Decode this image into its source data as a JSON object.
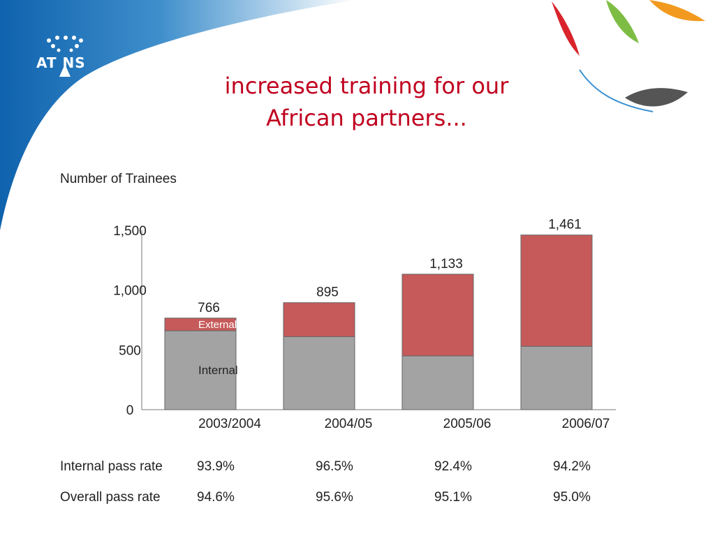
{
  "slide": {
    "title_line1": "increased training for our",
    "title_line2": "African partners...",
    "logo_text": "AT NS"
  },
  "chart_data": {
    "type": "bar",
    "stacked": true,
    "ylabel": "Number of Trainees",
    "ylim": [
      0,
      1500
    ],
    "yticks": [
      0,
      500,
      1000,
      1500
    ],
    "ytick_labels": [
      "0",
      "500",
      "1,000",
      "1,500"
    ],
    "categories": [
      "2003/2004",
      "2004/05",
      "2005/06",
      "2006/07"
    ],
    "series": [
      {
        "name": "Internal",
        "color": "#a3a3a3",
        "values": [
          660,
          610,
          450,
          530
        ]
      },
      {
        "name": "External",
        "color": "#c65a5a",
        "values": [
          106,
          285,
          683,
          931
        ]
      }
    ],
    "totals": [
      766,
      895,
      1133,
      1461
    ],
    "total_labels": [
      "766",
      "895",
      "1,133",
      "1,461"
    ],
    "grid": false,
    "series_labels_on_first_bar": true
  },
  "pass_rates": {
    "internal": {
      "label": "Internal pass rate",
      "values": [
        "93.9%",
        "96.5%",
        "92.4%",
        "94.2%"
      ]
    },
    "overall": {
      "label": "Overall pass rate",
      "values": [
        "94.6%",
        "95.6%",
        "95.1%",
        "95.0%"
      ]
    }
  },
  "colors": {
    "title": "#c0001e",
    "background_blue": "#1a6fb6",
    "internal": "#a3a3a3",
    "external": "#c65a5a"
  }
}
